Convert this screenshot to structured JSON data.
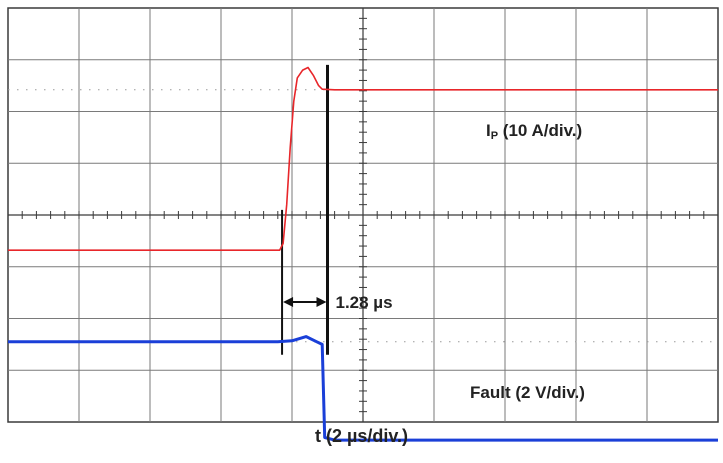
{
  "chart_data": {
    "type": "line",
    "xlabel": "t (2 µs/div.)",
    "grid": true,
    "divisions": {
      "x": 10,
      "y": 8
    },
    "time_per_div_us": 2,
    "series": [
      {
        "name": "IP (10 A/div.)",
        "name_main": "I",
        "name_sub": "P",
        "name_rest": " (10 A/div.)",
        "color": "#e8262a",
        "volts_per_div": 10,
        "unit": "A",
        "points": [
          [
            0,
            -0.68
          ],
          [
            7.65,
            -0.68
          ],
          [
            7.75,
            -0.55
          ],
          [
            7.85,
            0.2
          ],
          [
            7.95,
            1.3
          ],
          [
            8.05,
            2.2
          ],
          [
            8.15,
            2.65
          ],
          [
            8.3,
            2.8
          ],
          [
            8.45,
            2.85
          ],
          [
            8.6,
            2.7
          ],
          [
            8.75,
            2.5
          ],
          [
            8.85,
            2.43
          ],
          [
            9.2,
            2.42
          ],
          [
            20,
            2.42
          ]
        ]
      },
      {
        "name": "Fault (2 V/div.)",
        "color": "#1a3fd8",
        "volts_per_div": 2,
        "unit": "V",
        "points": [
          [
            0,
            -2.45
          ],
          [
            7.6,
            -2.45
          ],
          [
            8.0,
            -2.43
          ],
          [
            8.4,
            -2.35
          ],
          [
            8.7,
            -2.45
          ],
          [
            8.85,
            -2.5
          ],
          [
            8.92,
            -4.3
          ],
          [
            9.2,
            -4.35
          ],
          [
            20,
            -4.35
          ]
        ]
      }
    ],
    "annotations": [
      {
        "text": "1.28 µs",
        "from_t": 7.72,
        "to_t": 9.0
      }
    ]
  }
}
